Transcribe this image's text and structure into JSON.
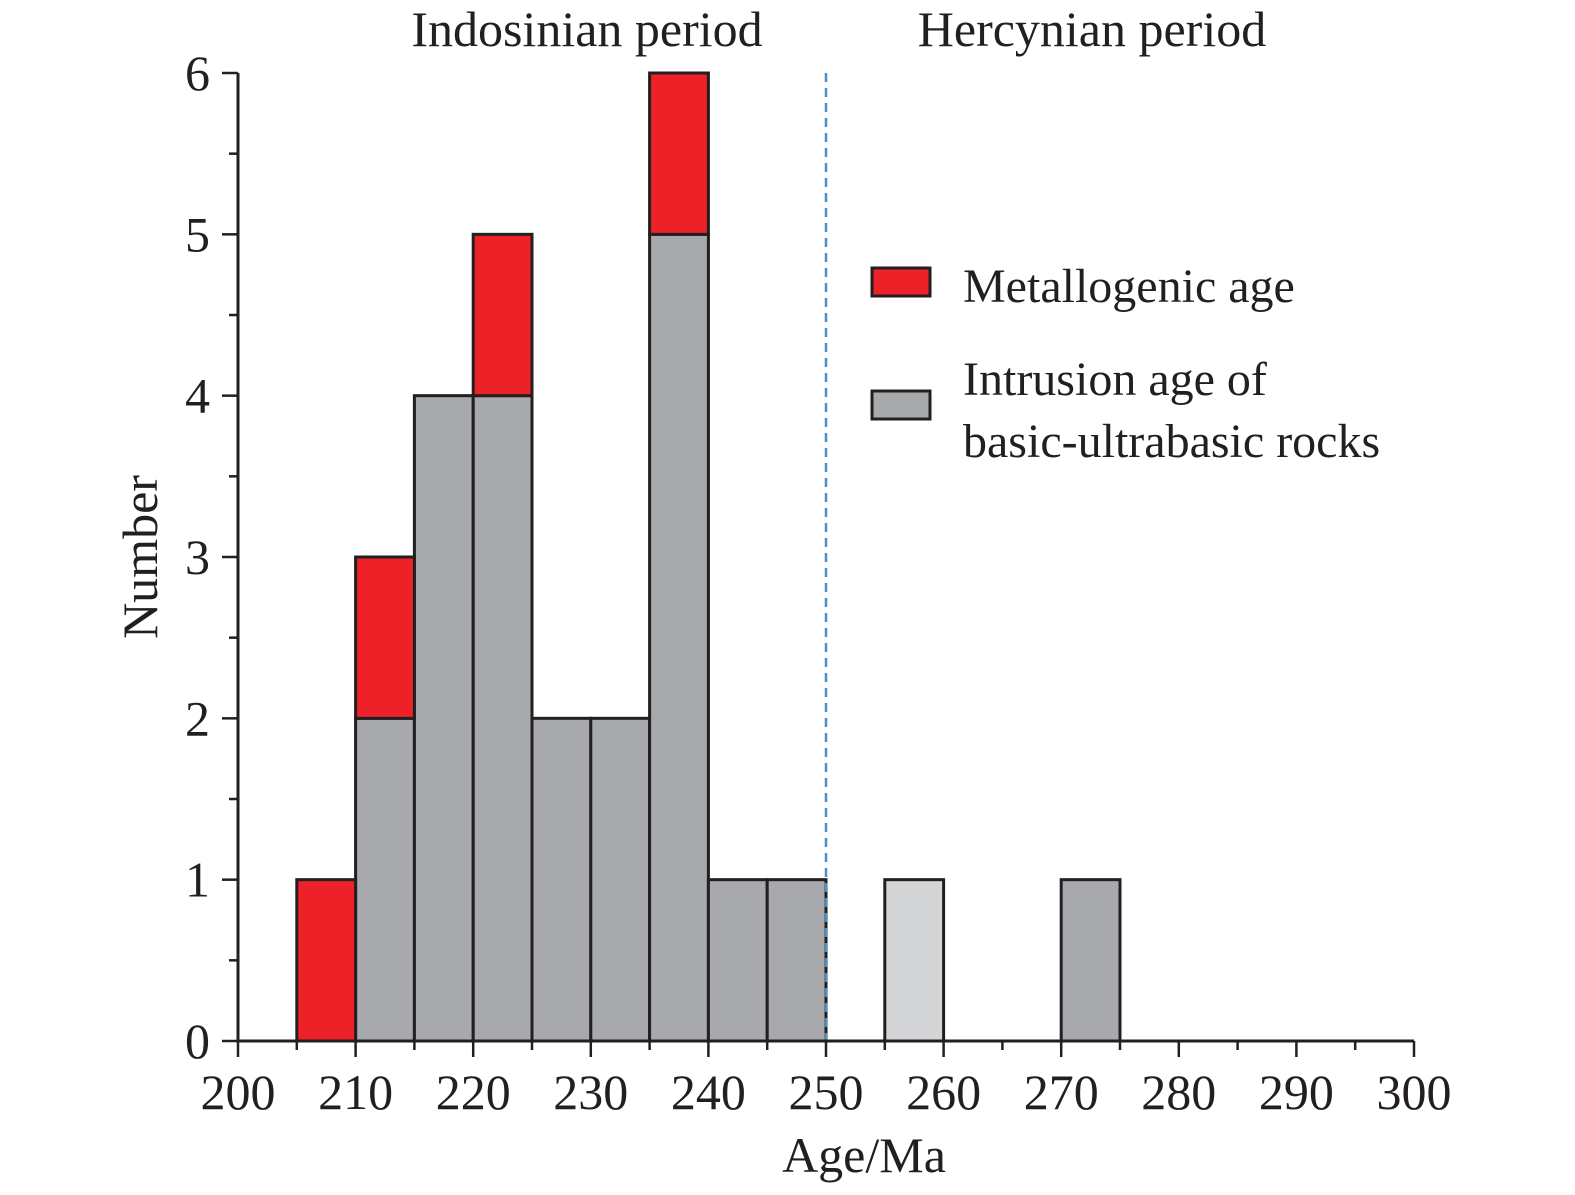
{
  "chart_data": {
    "type": "bar",
    "stacked": true,
    "xlabel": "Age/Ma",
    "ylabel": "Number",
    "xlim": [
      200,
      300
    ],
    "ylim": [
      0,
      6
    ],
    "x_ticks": [
      "200",
      "210",
      "220",
      "230",
      "240",
      "250",
      "260",
      "270",
      "280",
      "290",
      "300"
    ],
    "y_ticks": [
      "0",
      "1",
      "2",
      "3",
      "4",
      "5",
      "6"
    ],
    "bin_width": 5,
    "bins": [
      205,
      210,
      215,
      220,
      225,
      230,
      235,
      240,
      245,
      255,
      270
    ],
    "series": [
      {
        "name": "Intrusion age of basic-ultrabasic rocks",
        "color": "#a7a9ac",
        "values": [
          0,
          2,
          4,
          4,
          2,
          2,
          5,
          1,
          1,
          1,
          1
        ],
        "highlight_colors": {
          "9": "#d4d5d7"
        }
      },
      {
        "name": "Metallogenic age",
        "color": "#ed2229",
        "values": [
          1,
          1,
          0,
          1,
          0,
          0,
          1,
          0,
          0,
          0,
          0
        ]
      }
    ],
    "divider": {
      "x": 250,
      "style": "dashed",
      "color": "#4a90c4"
    },
    "annotations": [
      "Indosinian period",
      "Hercynian period"
    ],
    "legend": {
      "placement": "right",
      "items": [
        {
          "lines": [
            "Metallogenic age"
          ],
          "color": "#ed2229"
        },
        {
          "lines": [
            "Intrusion age of",
            "basic-ultrabasic rocks"
          ],
          "color": "#a7a9ac"
        }
      ]
    }
  }
}
